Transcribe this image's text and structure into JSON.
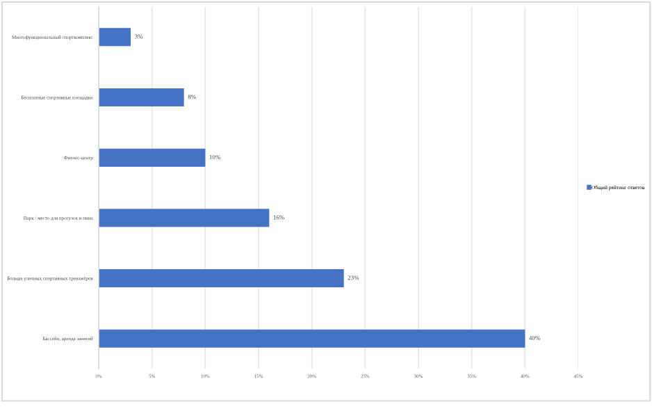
{
  "chart_data": {
    "type": "bar",
    "orientation": "horizontal",
    "categories": [
      "Многофункциональный спорткомплекс",
      "Бесплатные спортивные площадки",
      "Фитнес-центр",
      "Парк / место для прогулок и пикн",
      "Больше уличных спортивных тренажёров",
      "Бассейн, аренда занятий"
    ],
    "series": [
      {
        "name": "Общий рейтинг ответов",
        "color": "#4472c4",
        "values": [
          3,
          8,
          10,
          16,
          23,
          40
        ]
      }
    ],
    "value_labels": [
      "3%",
      "8%",
      "10%",
      "16%",
      "23%",
      "40%"
    ],
    "xlim": [
      0,
      45
    ],
    "xticks": [
      {
        "value": 0,
        "label": "0%"
      },
      {
        "value": 5,
        "label": "5%"
      },
      {
        "value": 10,
        "label": "10%"
      },
      {
        "value": 15,
        "label": "15%"
      },
      {
        "value": 20,
        "label": "20%"
      },
      {
        "value": 25,
        "label": "25%"
      },
      {
        "value": 30,
        "label": "30%"
      },
      {
        "value": 35,
        "label": "35%"
      },
      {
        "value": 40,
        "label": "40%"
      },
      {
        "value": 45,
        "label": "45%"
      }
    ],
    "grid": "x",
    "legend": "right"
  }
}
